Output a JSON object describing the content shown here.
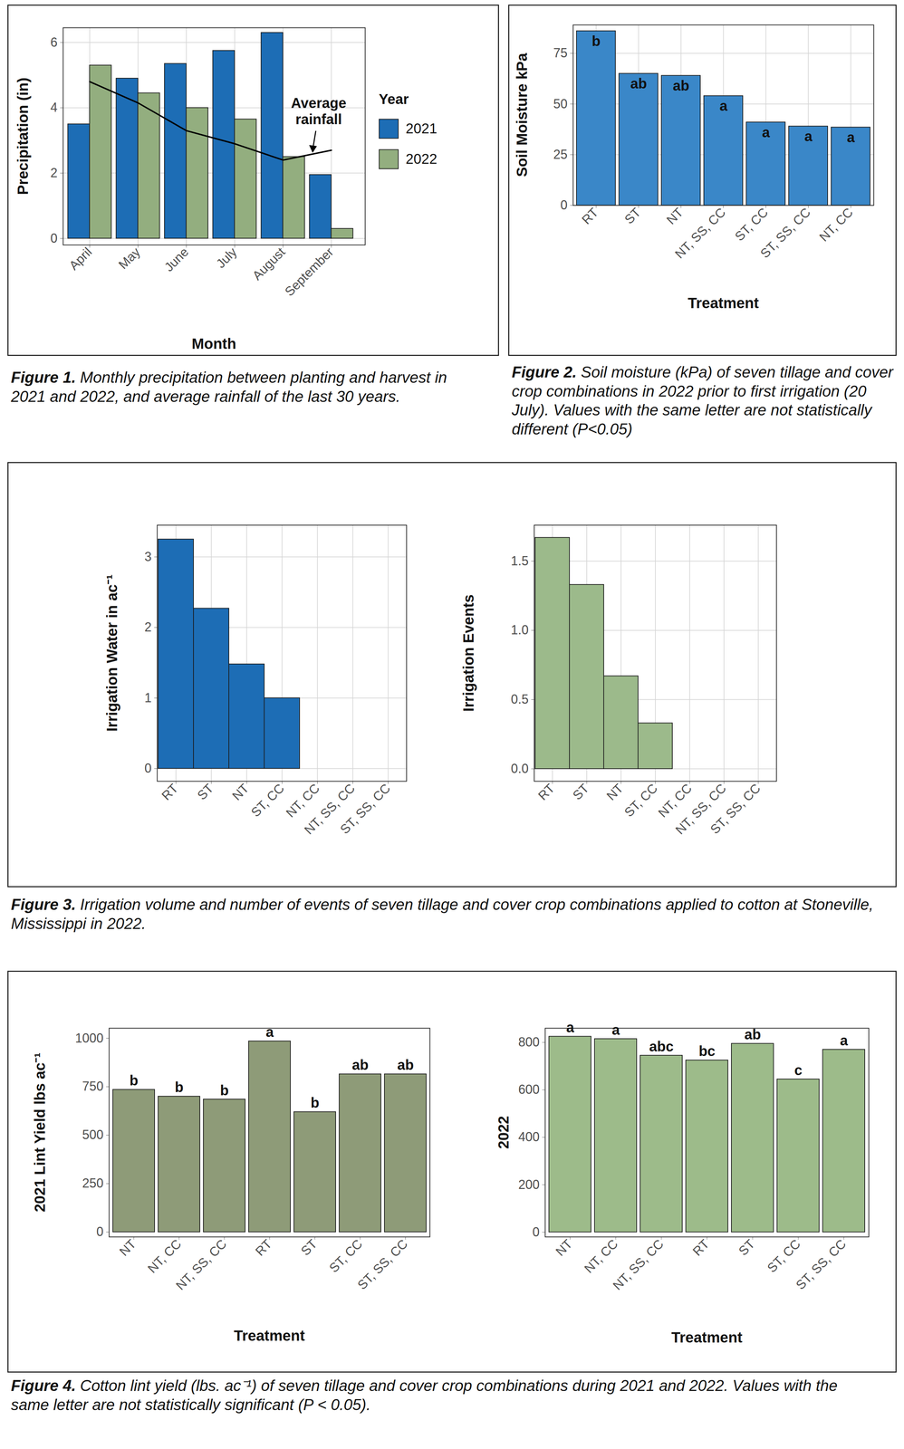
{
  "chart_data": [
    {
      "type": "bar",
      "caption_label": "Figure 1.",
      "caption": "Monthly precipitation between planting and harvest in 2021 and 2022, and average rainfall of the last 30 years.",
      "x_label": "Month",
      "y_label": "Precipitation (in)",
      "categories": [
        "April",
        "May",
        "June",
        "July",
        "August",
        "September"
      ],
      "series": [
        {
          "name": "2021",
          "color": "#1d6db5",
          "values": [
            3.5,
            4.9,
            5.35,
            5.75,
            6.3,
            1.95
          ]
        },
        {
          "name": "2022",
          "color": "#93ae7f",
          "values": [
            5.3,
            4.45,
            4.0,
            3.65,
            2.5,
            0.3
          ]
        },
        {
          "name": "Average rainfall",
          "type": "line",
          "color": "#000000",
          "values": [
            4.8,
            4.15,
            3.3,
            2.9,
            2.4,
            2.7
          ]
        }
      ],
      "legend": "right",
      "legend_title": "Year",
      "ylim": [
        -0.2,
        6.45
      ],
      "yticks": [
        0,
        2,
        4,
        6
      ],
      "grid": true
    },
    {
      "type": "bar",
      "caption_label": "Figure 2.",
      "caption": "Soil moisture (kPa) of seven tillage and cover crop combinations in 2022 prior to first irrigation (20 July). Values with the same letter are not statistically different (P<0.05)",
      "x_label": "Treatment",
      "y_label": "Soil Moisture kPa",
      "categories": [
        "RT",
        "ST",
        "NT",
        "NT, SS, CC",
        "ST, CC",
        "ST, SS, CC",
        "NT, CC"
      ],
      "values": [
        86,
        65,
        64,
        54,
        41,
        39,
        38.5
      ],
      "letters": [
        "b",
        "ab",
        "ab",
        "a",
        "a",
        "a",
        "a"
      ],
      "color": "#3a87c8",
      "ylim": [
        0,
        89
      ],
      "yticks": [
        0,
        25,
        50,
        75
      ],
      "grid": true
    },
    {
      "type": "bar",
      "caption_label": "Figure 3.",
      "caption": "Irrigation volume and number of events of seven tillage and cover crop combinations applied to cotton at Stoneville, Mississippi in 2022.",
      "y_label": "Irrigation Water in ac⁻¹",
      "categories": [
        "RT",
        "ST",
        "NT",
        "ST, CC",
        "NT, CC",
        "NT, SS, CC",
        "ST, SS, CC"
      ],
      "values": [
        3.25,
        2.27,
        1.48,
        1.0,
        0,
        0,
        0
      ],
      "color": "#1d6db5",
      "ylim": [
        -0.18,
        3.45
      ],
      "yticks": [
        0,
        1,
        2,
        3
      ],
      "grid": true
    },
    {
      "type": "bar",
      "y_label": "Irrigation Events",
      "categories": [
        "RT",
        "ST",
        "NT",
        "ST, CC",
        "NT, CC",
        "NT, SS, CC",
        "ST, SS, CC"
      ],
      "values": [
        1.67,
        1.33,
        0.67,
        0.33,
        0,
        0,
        0
      ],
      "color": "#9cba8b",
      "ylim": [
        -0.09,
        1.76
      ],
      "yticks": [
        {
          "value": 0,
          "label": "0.0"
        },
        0.5,
        {
          "value": 1,
          "label": "1.0"
        },
        1.5
      ],
      "grid": true
    },
    {
      "type": "bar",
      "caption_label": "Figure 4.",
      "caption": "Cotton lint yield (lbs. ac⁻¹) of seven tillage and cover crop combinations during 2021 and 2022. Values with the same letter are not statistically significant (P < 0.05).",
      "x_label": "Treatment",
      "y_label": "2021 Lint Yield lbs ac⁻¹",
      "categories": [
        "NT",
        "NT, CC",
        "NT, SS, CC",
        "RT",
        "ST",
        "ST, CC",
        "ST, SS, CC"
      ],
      "values": [
        735,
        700,
        685,
        985,
        620,
        815,
        815
      ],
      "letters": [
        "b",
        "b",
        "b",
        "a",
        "b",
        "ab",
        "ab"
      ],
      "color": "#8e9b78",
      "ylim": [
        -25,
        1052
      ],
      "yticks": [
        0,
        250,
        500,
        750,
        1000
      ],
      "grid": false
    },
    {
      "type": "bar",
      "x_label": "Treatment",
      "y_label": "2022",
      "categories": [
        "NT",
        "NT, CC",
        "NT, SS, CC",
        "RT",
        "ST",
        "ST, CC",
        "ST, SS, CC"
      ],
      "values": [
        825,
        815,
        745,
        725,
        795,
        645,
        770
      ],
      "letters": [
        "a",
        "a",
        "abc",
        "bc",
        "ab",
        "c",
        "a"
      ],
      "color": "#9dbb8a",
      "ylim": [
        -20,
        860
      ],
      "yticks": [
        0,
        200,
        400,
        600,
        800
      ],
      "grid": false
    }
  ]
}
